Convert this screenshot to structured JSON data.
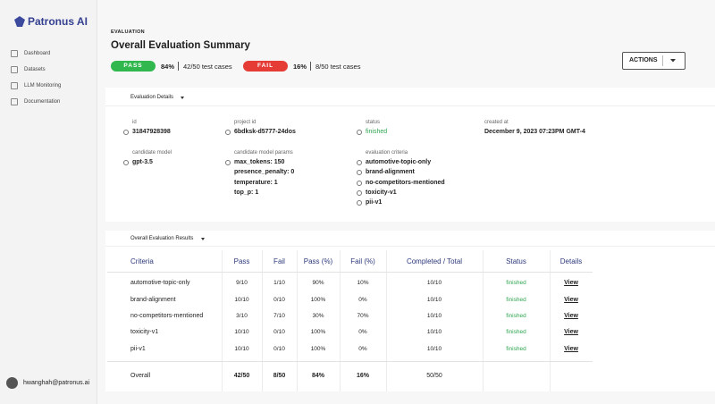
{
  "sidebar": {
    "logo": "Patronus AI",
    "nav": [
      "Dashboard",
      "Datasets",
      "LLM Monitoring",
      "Documentation"
    ],
    "user": "hwanghah@patronus.ai"
  },
  "header": {
    "breadcrumb": "EVALUATION",
    "title": "Overall Evaluation Summary",
    "pass": {
      "label": "PASS",
      "percent": "84%",
      "cases": "42/50 test cases"
    },
    "fail": {
      "label": "FAIL",
      "percent": "16%",
      "cases": "8/50 test cases"
    },
    "actions": "ACTIONS"
  },
  "details": {
    "title": "Evaluation Details",
    "fields": [
      {
        "label": "id",
        "values": [
          "31847928398"
        ]
      },
      {
        "label": "project id",
        "values": [
          "6bdksk-d5777-24dos"
        ]
      },
      {
        "label": "status",
        "values": [
          "finished"
        ]
      },
      {
        "label": "created at",
        "values": [
          "December 9, 2023 07:23PM GMT-4"
        ]
      },
      {
        "label": "candidate model",
        "values": [
          "gpt-3.5"
        ]
      },
      {
        "label": "candidate model params",
        "values": [
          "max_tokens: 150",
          "presence_penalty: 0",
          "temperature: 1",
          "top_p: 1"
        ]
      },
      {
        "label": "evaluation criteria",
        "values": [
          "automotive-topic-only",
          "brand-alignment",
          "no-competitors-mentioned",
          "toxicity-v1",
          "pii-v1"
        ]
      }
    ]
  },
  "results": {
    "title": "Overall Evaluation Results",
    "columns": [
      "Criteria",
      "Pass",
      "Fail",
      "Pass (%)",
      "Fail (%)",
      "Completed / Total",
      "Status",
      "Details"
    ],
    "rows": [
      [
        "automotive-topic-only",
        "9/10",
        "1/10",
        "90%",
        "10%",
        "10/10",
        "finished",
        "View"
      ],
      [
        "brand-alignment",
        "10/10",
        "0/10",
        "100%",
        "0%",
        "10/10",
        "finished",
        "View"
      ],
      [
        "no-competitors-mentioned",
        "3/10",
        "7/10",
        "30%",
        "70%",
        "10/10",
        "finished",
        "View"
      ],
      [
        "toxicity-v1",
        "10/10",
        "0/10",
        "100%",
        "0%",
        "10/10",
        "finished",
        "View"
      ],
      [
        "pii-v1",
        "10/10",
        "0/10",
        "100%",
        "0%",
        "10/10",
        "finished",
        "View"
      ]
    ],
    "total": [
      "Overall",
      "42/50",
      "8/50",
      "84%",
      "16%",
      "50/50"
    ]
  }
}
